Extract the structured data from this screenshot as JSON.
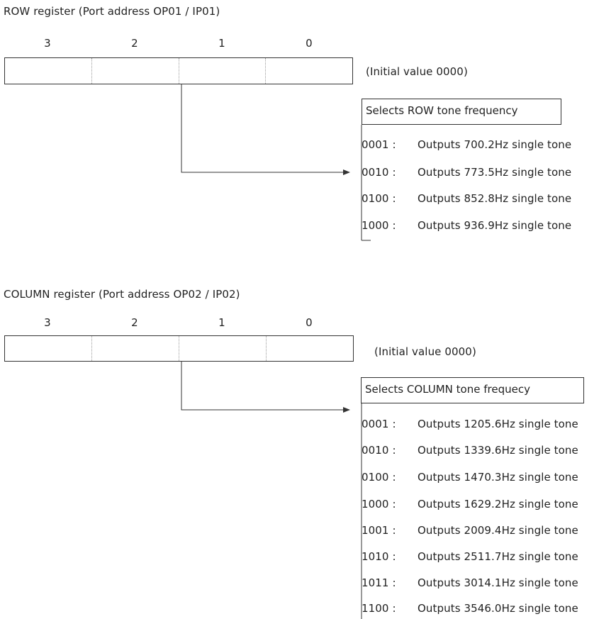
{
  "row_register": {
    "title": "ROW register  (Port address    OP01 / IP01)",
    "bit_labels": [
      "3",
      "2",
      "1",
      "0"
    ],
    "initial_value": "(Initial value    0000)",
    "header": "Selects ROW tone frequency",
    "options": [
      {
        "code": "0001 :",
        "desc": "Outputs 700.2Hz single tone"
      },
      {
        "code": "0010 :",
        "desc": "Outputs 773.5Hz single tone"
      },
      {
        "code": "0100 :",
        "desc": "Outputs 852.8Hz single tone"
      },
      {
        "code": "1000 :",
        "desc": "Outputs 936.9Hz single tone"
      }
    ]
  },
  "column_register": {
    "title": "COLUMN register  (Port address    OP02 / IP02)",
    "bit_labels": [
      "3",
      "2",
      "1",
      "0"
    ],
    "initial_value": "(Initial value    0000)",
    "header": "Selects COLUMN tone frequecy",
    "options": [
      {
        "code": "0001 :",
        "desc": "Outputs 1205.6Hz single tone"
      },
      {
        "code": "0010 :",
        "desc": "Outputs 1339.6Hz single tone"
      },
      {
        "code": "0100 :",
        "desc": "Outputs 1470.3Hz single tone"
      },
      {
        "code": "1000 :",
        "desc": "Outputs 1629.2Hz single tone"
      },
      {
        "code": "1001 :",
        "desc": "Outputs 2009.4Hz single tone"
      },
      {
        "code": "1010 :",
        "desc": "Outputs 2511.7Hz single tone"
      },
      {
        "code": "1011 :",
        "desc": "Outputs 3014.1Hz single tone"
      },
      {
        "code": "1100 :",
        "desc": "Outputs 3546.0Hz single tone"
      }
    ]
  }
}
